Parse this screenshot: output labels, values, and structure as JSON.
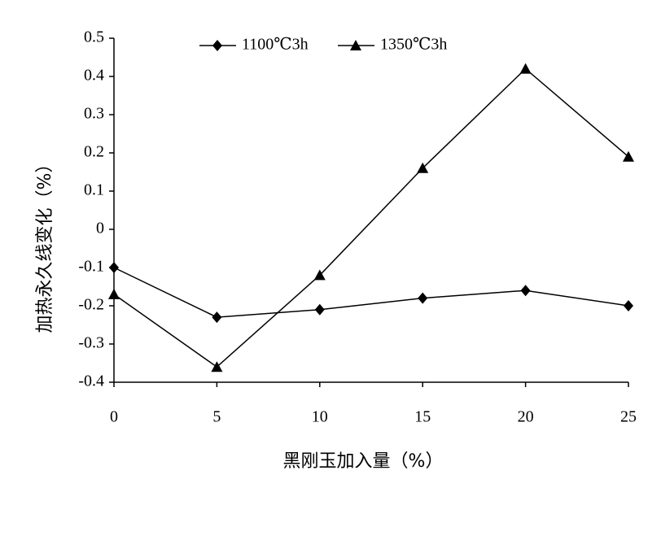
{
  "chart_data": {
    "type": "line",
    "x_label": "黑刚玉加入量（%）",
    "y_label": "加热永久线变化（%）",
    "x": [
      0,
      5,
      10,
      15,
      20,
      25
    ],
    "series": [
      {
        "name": "1100℃3h",
        "color": "#000000",
        "marker": "diamond",
        "values": [
          -0.1,
          -0.23,
          -0.21,
          -0.18,
          -0.16,
          -0.2
        ]
      },
      {
        "name": "1350℃3h",
        "color": "#000000",
        "marker": "triangle",
        "values": [
          -0.17,
          -0.36,
          -0.12,
          0.16,
          0.42,
          0.19
        ]
      }
    ],
    "xlim": [
      0,
      25
    ],
    "xticks": [
      0,
      5,
      10,
      15,
      20,
      25
    ],
    "ylim": [
      -0.4,
      0.5
    ],
    "yticks": [
      0.5,
      0.4,
      0.3,
      0.2,
      0.1,
      0,
      -0.1,
      -0.2,
      -0.3,
      -0.4
    ],
    "grid": false,
    "legend": "top"
  }
}
